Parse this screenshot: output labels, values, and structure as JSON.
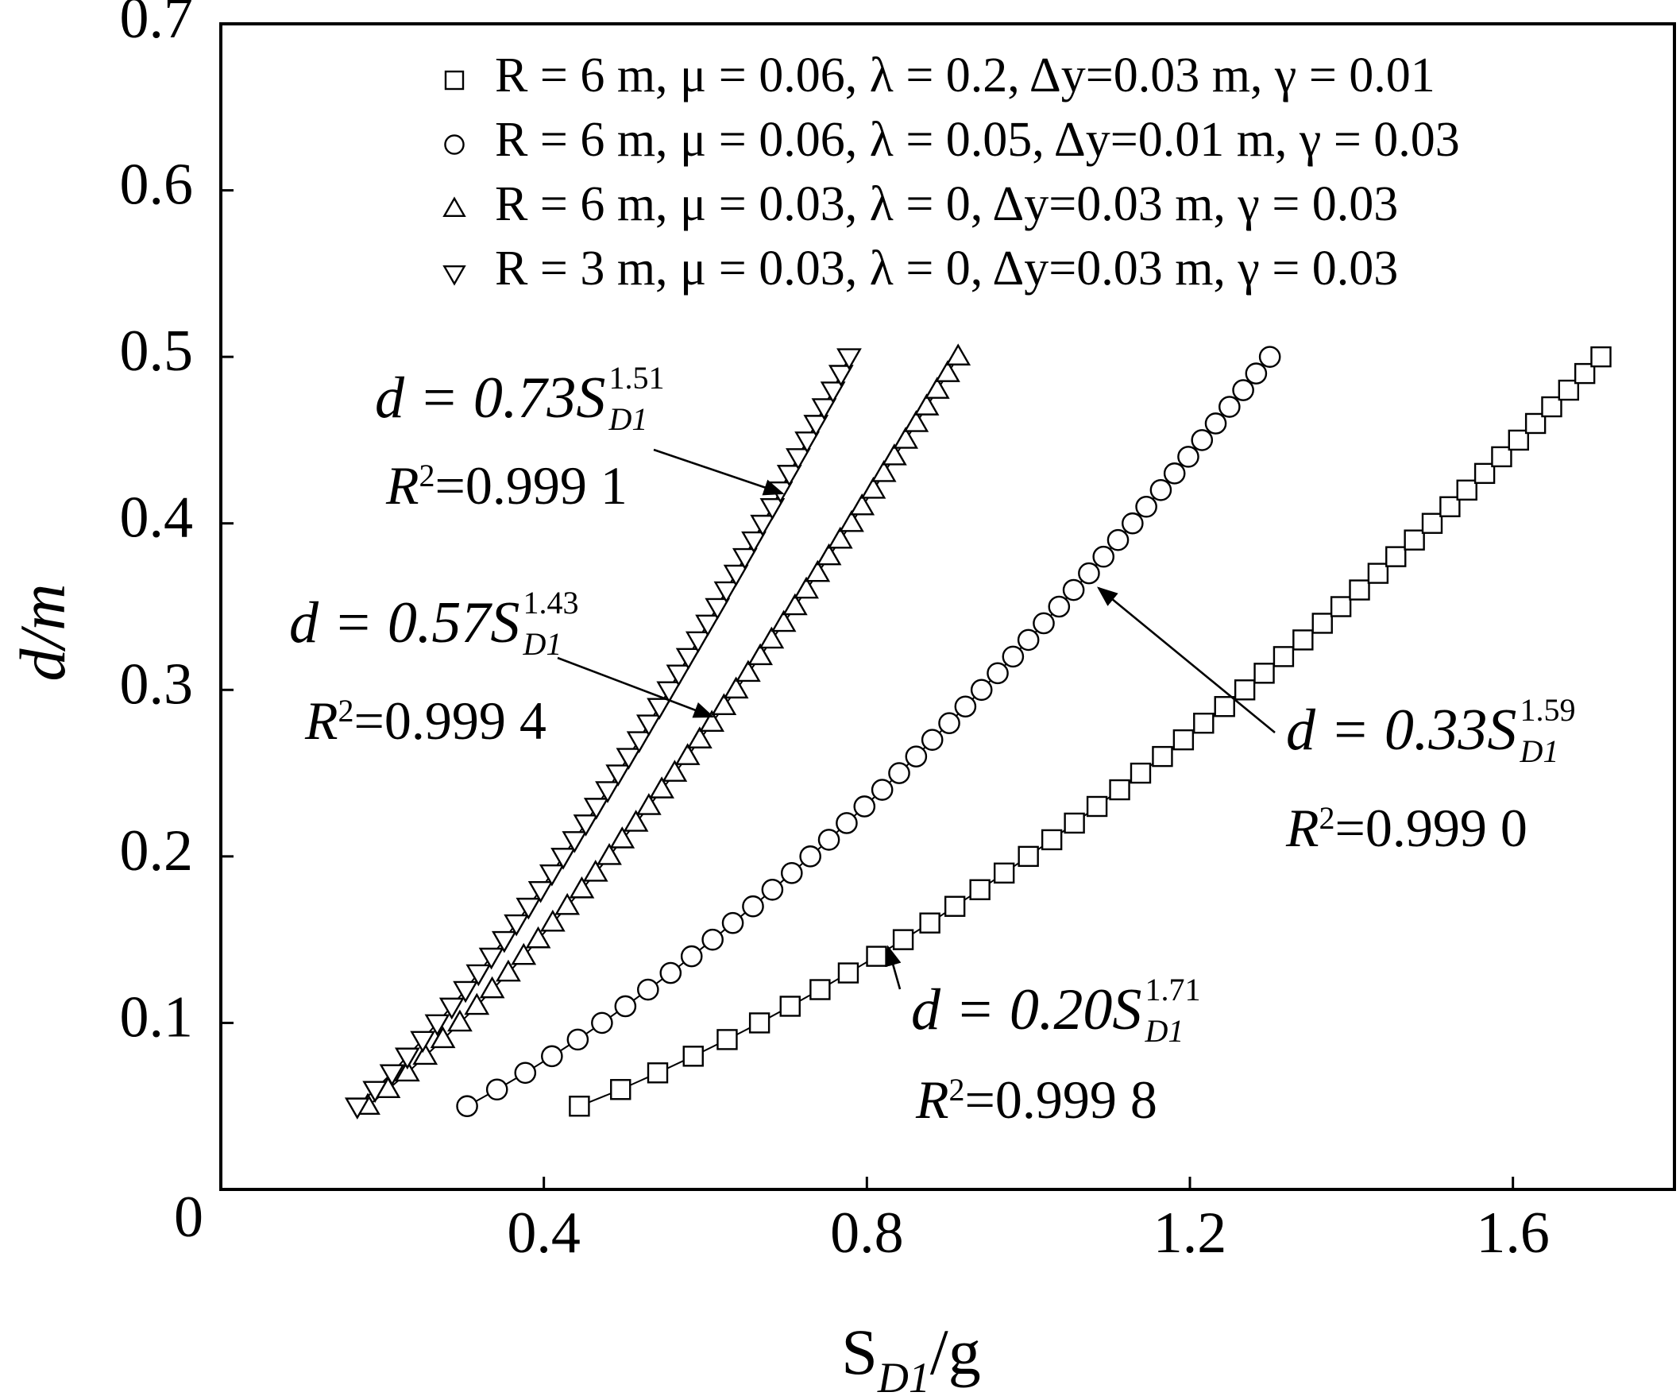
{
  "chart_data": {
    "type": "scatter",
    "xlabel": [
      "S",
      "D1",
      "/g"
    ],
    "ylabel": "d/m",
    "xlim": [
      0,
      1.8
    ],
    "ylim": [
      0,
      0.7
    ],
    "xticks": [
      0.4,
      0.8,
      1.2,
      1.6
    ],
    "yticks": [
      0,
      0.1,
      0.2,
      0.3,
      0.4,
      0.5,
      0.6,
      0.7
    ],
    "legend": "top-right",
    "series": [
      {
        "name": "R = 6 m,  μ = 0.06,  λ = 0.2, Δy=0.03 m, γ = 0.01",
        "marker": "square",
        "color": "#000000",
        "x": [
          0.444,
          0.495,
          0.541,
          0.585,
          0.627,
          0.667,
          0.705,
          0.742,
          0.777,
          0.812,
          0.845,
          0.878,
          0.909,
          0.94,
          0.97,
          1.0,
          1.029,
          1.057,
          1.085,
          1.113,
          1.139,
          1.166,
          1.192,
          1.217,
          1.243,
          1.268,
          1.292,
          1.316,
          1.34,
          1.364,
          1.387,
          1.41,
          1.433,
          1.455,
          1.478,
          1.5,
          1.522,
          1.543,
          1.565,
          1.586,
          1.607,
          1.628,
          1.648,
          1.669,
          1.689,
          1.709
        ],
        "values": [
          0.05,
          0.06,
          0.07,
          0.08,
          0.09,
          0.1,
          0.11,
          0.12,
          0.13,
          0.14,
          0.15,
          0.16,
          0.17,
          0.18,
          0.19,
          0.2,
          0.21,
          0.22,
          0.23,
          0.24,
          0.25,
          0.26,
          0.27,
          0.28,
          0.29,
          0.3,
          0.31,
          0.32,
          0.33,
          0.34,
          0.35,
          0.36,
          0.37,
          0.38,
          0.39,
          0.4,
          0.41,
          0.42,
          0.43,
          0.44,
          0.45,
          0.46,
          0.47,
          0.48,
          0.49,
          0.5
        ]
      },
      {
        "name": "R = 6 m,  μ = 0.06,  λ = 0.05, Δy=0.01 m, γ = 0.03",
        "marker": "circle",
        "color": "#000000",
        "x": [
          0.305,
          0.342,
          0.377,
          0.41,
          0.442,
          0.472,
          0.501,
          0.529,
          0.557,
          0.583,
          0.609,
          0.634,
          0.659,
          0.683,
          0.707,
          0.73,
          0.753,
          0.775,
          0.797,
          0.819,
          0.84,
          0.861,
          0.881,
          0.902,
          0.922,
          0.942,
          0.962,
          0.981,
          1.0,
          1.019,
          1.038,
          1.056,
          1.075,
          1.093,
          1.111,
          1.129,
          1.146,
          1.164,
          1.181,
          1.198,
          1.215,
          1.232,
          1.249,
          1.266,
          1.282,
          1.299
        ],
        "values": [
          0.05,
          0.06,
          0.07,
          0.08,
          0.09,
          0.1,
          0.11,
          0.12,
          0.13,
          0.14,
          0.15,
          0.16,
          0.17,
          0.18,
          0.19,
          0.2,
          0.21,
          0.22,
          0.23,
          0.24,
          0.25,
          0.26,
          0.27,
          0.28,
          0.29,
          0.3,
          0.31,
          0.32,
          0.33,
          0.34,
          0.35,
          0.36,
          0.37,
          0.38,
          0.39,
          0.4,
          0.41,
          0.42,
          0.43,
          0.44,
          0.45,
          0.46,
          0.47,
          0.48,
          0.49,
          0.5
        ]
      },
      {
        "name": "R = 6 m,  μ = 0.03,  λ = 0, Δy=0.03 m, γ = 0.03",
        "marker": "triangle-up",
        "color": "#000000",
        "x": [
          0.182,
          0.207,
          0.231,
          0.253,
          0.275,
          0.296,
          0.317,
          0.336,
          0.356,
          0.375,
          0.393,
          0.411,
          0.429,
          0.447,
          0.464,
          0.481,
          0.497,
          0.514,
          0.53,
          0.546,
          0.562,
          0.578,
          0.593,
          0.608,
          0.623,
          0.638,
          0.653,
          0.668,
          0.682,
          0.697,
          0.711,
          0.725,
          0.739,
          0.753,
          0.767,
          0.781,
          0.794,
          0.808,
          0.821,
          0.834,
          0.848,
          0.861,
          0.874,
          0.887,
          0.9,
          0.913
        ],
        "values": [
          0.05,
          0.06,
          0.07,
          0.08,
          0.09,
          0.1,
          0.11,
          0.12,
          0.13,
          0.14,
          0.15,
          0.16,
          0.17,
          0.18,
          0.19,
          0.2,
          0.21,
          0.22,
          0.23,
          0.24,
          0.25,
          0.26,
          0.27,
          0.28,
          0.29,
          0.3,
          0.31,
          0.32,
          0.33,
          0.34,
          0.35,
          0.36,
          0.37,
          0.38,
          0.39,
          0.4,
          0.41,
          0.42,
          0.43,
          0.44,
          0.45,
          0.46,
          0.47,
          0.48,
          0.49,
          0.5
        ]
      },
      {
        "name": "R = 3 m,  μ = 0.03,  λ = 0, Δy=0.03 m, γ = 0.03",
        "marker": "triangle-down",
        "color": "#000000",
        "x": [
          0.169,
          0.191,
          0.212,
          0.231,
          0.25,
          0.268,
          0.286,
          0.303,
          0.319,
          0.335,
          0.351,
          0.366,
          0.381,
          0.396,
          0.41,
          0.424,
          0.438,
          0.452,
          0.465,
          0.479,
          0.492,
          0.505,
          0.518,
          0.53,
          0.543,
          0.555,
          0.567,
          0.579,
          0.591,
          0.603,
          0.615,
          0.626,
          0.638,
          0.649,
          0.66,
          0.671,
          0.683,
          0.693,
          0.704,
          0.715,
          0.726,
          0.737,
          0.747,
          0.758,
          0.768,
          0.778
        ],
        "values": [
          0.05,
          0.06,
          0.07,
          0.08,
          0.09,
          0.1,
          0.11,
          0.12,
          0.13,
          0.14,
          0.15,
          0.16,
          0.17,
          0.18,
          0.19,
          0.2,
          0.21,
          0.22,
          0.23,
          0.24,
          0.25,
          0.26,
          0.27,
          0.28,
          0.29,
          0.3,
          0.31,
          0.32,
          0.33,
          0.34,
          0.35,
          0.36,
          0.37,
          0.38,
          0.39,
          0.4,
          0.41,
          0.42,
          0.43,
          0.44,
          0.45,
          0.46,
          0.47,
          0.48,
          0.49,
          0.5
        ]
      }
    ],
    "annotations": [
      {
        "equation": [
          "d = 0.20S",
          "1.71",
          "D1"
        ],
        "r2": [
          "R",
          "2",
          "=0.999 8"
        ]
      },
      {
        "equation": [
          "d = 0.33S",
          "1.59",
          "D1"
        ],
        "r2": [
          "R",
          "2",
          "=0.999 0"
        ]
      },
      {
        "equation": [
          "d = 0.57S",
          "1.43",
          "D1"
        ],
        "r2": [
          "R",
          "2",
          "=0.999 4"
        ]
      },
      {
        "equation": [
          "d = 0.73S",
          "1.51",
          "D1"
        ],
        "r2": [
          "R",
          "2",
          "=0.999 1"
        ]
      }
    ]
  }
}
